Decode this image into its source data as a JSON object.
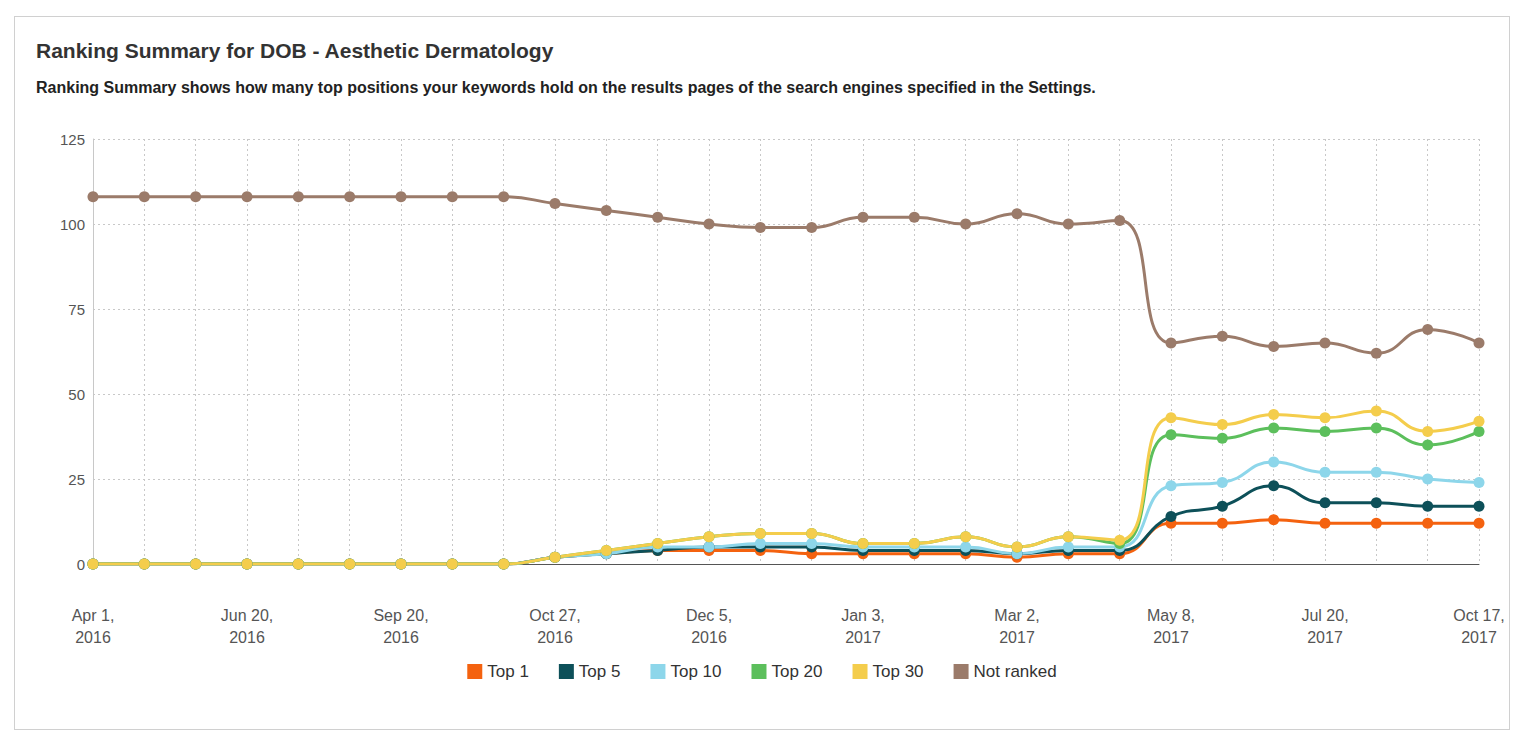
{
  "chart_data": {
    "type": "line",
    "title": "Ranking Summary for DOB - Aesthetic Dermatology",
    "subtitle": "Ranking Summary shows how many top positions your keywords hold on the results pages of the search engines specified in the Settings.",
    "categories": [
      "Apr 1, 2016",
      null,
      null,
      "Jun 20, 2016",
      null,
      null,
      "Sep 20, 2016",
      null,
      null,
      "Oct 27, 2016",
      null,
      null,
      "Dec 5, 2016",
      null,
      null,
      "Jan 3, 2017",
      null,
      null,
      "Mar 2, 2017",
      null,
      null,
      "May 8, 2017",
      null,
      null,
      "Jul 20, 2017",
      null,
      null,
      "Oct 17, 2017"
    ],
    "ylim": [
      0,
      125
    ],
    "yticks": [
      0,
      25,
      50,
      75,
      100,
      125
    ],
    "grid": true,
    "legend": "bottom",
    "marker": "circle",
    "series": [
      {
        "name": "Top 1",
        "color": "#f4620f",
        "values": [
          0,
          0,
          0,
          0,
          0,
          0,
          0,
          0,
          0,
          2,
          3,
          4,
          4,
          4,
          3,
          3,
          3,
          3,
          2,
          3,
          3,
          12,
          12,
          13,
          12,
          12,
          12,
          12
        ]
      },
      {
        "name": "Top 5",
        "color": "#0d5059",
        "values": [
          0,
          0,
          0,
          0,
          0,
          0,
          0,
          0,
          0,
          2,
          3,
          4,
          5,
          5,
          5,
          4,
          4,
          4,
          3,
          4,
          4,
          14,
          17,
          23,
          18,
          18,
          17,
          17
        ]
      },
      {
        "name": "Top 10",
        "color": "#8dd6ea",
        "values": [
          0,
          0,
          0,
          0,
          0,
          0,
          0,
          0,
          0,
          2,
          3,
          5,
          5,
          6,
          6,
          5,
          5,
          5,
          3,
          5,
          5,
          23,
          24,
          30,
          27,
          27,
          25,
          24
        ]
      },
      {
        "name": "Top 20",
        "color": "#5cbf5c",
        "values": [
          0,
          0,
          0,
          0,
          0,
          0,
          0,
          0,
          0,
          2,
          4,
          6,
          8,
          9,
          9,
          6,
          6,
          8,
          5,
          8,
          6,
          38,
          37,
          40,
          39,
          40,
          35,
          39
        ]
      },
      {
        "name": "Top 30",
        "color": "#f4cd4c",
        "values": [
          0,
          0,
          0,
          0,
          0,
          0,
          0,
          0,
          0,
          2,
          4,
          6,
          8,
          9,
          9,
          6,
          6,
          8,
          5,
          8,
          7,
          43,
          41,
          44,
          43,
          45,
          39,
          42
        ]
      },
      {
        "name": "Not ranked",
        "color": "#9b7b6a",
        "values": [
          108,
          108,
          108,
          108,
          108,
          108,
          108,
          108,
          108,
          106,
          104,
          102,
          100,
          99,
          99,
          102,
          102,
          100,
          103,
          100,
          101,
          65,
          67,
          64,
          65,
          62,
          69,
          65
        ]
      }
    ]
  }
}
